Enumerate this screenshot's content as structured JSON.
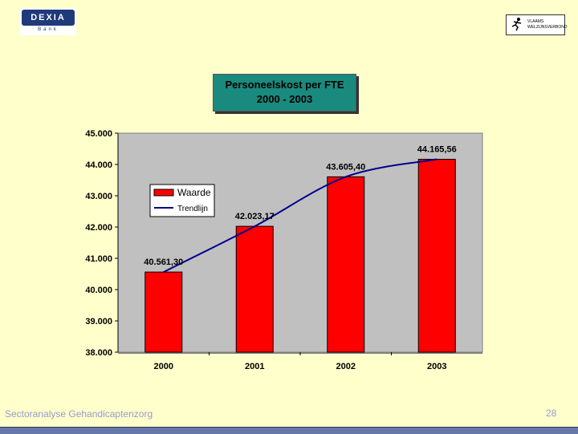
{
  "header": {
    "logo_left_text": "DEXIA",
    "logo_left_sub": "Bank",
    "logo_right_text": "VLAAMS WELZIJNSVERBOND"
  },
  "footer": {
    "text": "Sectoranalyse Gehandicaptenzorg",
    "page": "28"
  },
  "colors": {
    "bar": "#ff0000",
    "trend": "#00008b",
    "plot_bg": "#c0c0c0",
    "title_bg": "#1a8a7e"
  },
  "chart_data": {
    "type": "bar",
    "title_line1": "Personeelskost per FTE",
    "title_line2": "2000 - 2003",
    "categories": [
      "2000",
      "2001",
      "2002",
      "2003"
    ],
    "series": [
      {
        "name": "Waarde",
        "type": "bar",
        "values": [
          40561.3,
          42023.17,
          43605.4,
          44165.56
        ]
      },
      {
        "name": "Trendlijn",
        "type": "line",
        "values": [
          40561.3,
          42023.17,
          43605.4,
          44165.56
        ]
      }
    ],
    "data_labels": [
      "40.561,30",
      "42.023,17",
      "43.605,40",
      "44.165,56"
    ],
    "ylim": [
      38000,
      45000
    ],
    "yticks": [
      "38.000",
      "39.000",
      "40.000",
      "41.000",
      "42.000",
      "43.000",
      "44.000",
      "45.000"
    ],
    "legend_position": "top-left",
    "grid": false
  }
}
